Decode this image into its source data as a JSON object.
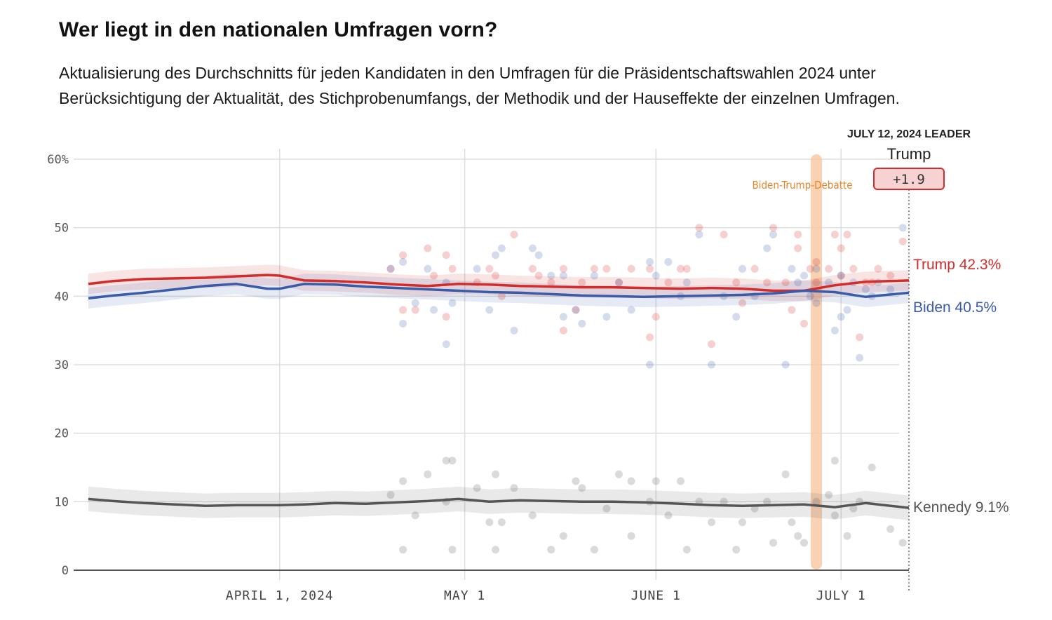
{
  "header": {
    "title": "Wer liegt in den nationalen Umfragen vorn?",
    "subtitle": "Aktualisierung des Durchschnitts für jeden Kandidaten in den Umfragen für die Präsidentschaftswahlen 2024 unter Berücksichtigung der Aktualität, des Stichprobenumfangs, der Methodik und der Hauseffekte der einzelnen Umfragen."
  },
  "colors": {
    "trump": "#d42b2b",
    "biden": "#3a5ba8",
    "kennedy": "#555555",
    "debate": "#f9c9a6",
    "grid": "#dddddd",
    "leader_box_fill": "#f6d2d2",
    "leader_box_stroke": "#d42b2b"
  },
  "leader": {
    "heading": "JULY 12, 2024 LEADER",
    "name": "Trump",
    "margin": "+1.9"
  },
  "chart_data": {
    "type": "line",
    "title": "",
    "xlabel": "",
    "ylabel": "",
    "x_range": [
      "2024-03-01",
      "2024-07-12"
    ],
    "ylim": [
      0,
      60
    ],
    "y_ticks": [
      {
        "value": 0,
        "label": "0"
      },
      {
        "value": 10,
        "label": "10"
      },
      {
        "value": 20,
        "label": "20"
      },
      {
        "value": 30,
        "label": "30"
      },
      {
        "value": 40,
        "label": "40"
      },
      {
        "value": 50,
        "label": "50"
      },
      {
        "value": 60,
        "label": "60%"
      }
    ],
    "x_ticks": [
      {
        "date": "2024-04-01",
        "label": "APRIL 1, 2024"
      },
      {
        "date": "2024-05-01",
        "label": "MAY 1"
      },
      {
        "date": "2024-06-01",
        "label": "JUNE 1"
      },
      {
        "date": "2024-07-01",
        "label": "JULY 1"
      }
    ],
    "grid": true,
    "annotations": [
      {
        "label": "Biden-Trump-Debatte",
        "date": "2024-06-27"
      }
    ],
    "series": [
      {
        "name": "Trump",
        "end_label": "Trump 42.3%",
        "color": "#d42b2b",
        "band": 1.5,
        "dates": [
          "2024-03-01",
          "2024-03-05",
          "2024-03-10",
          "2024-03-15",
          "2024-03-20",
          "2024-03-25",
          "2024-03-30",
          "2024-04-01",
          "2024-04-05",
          "2024-04-10",
          "2024-04-15",
          "2024-04-20",
          "2024-04-25",
          "2024-04-30",
          "2024-05-05",
          "2024-05-10",
          "2024-05-15",
          "2024-05-20",
          "2024-05-25",
          "2024-05-30",
          "2024-06-05",
          "2024-06-10",
          "2024-06-15",
          "2024-06-20",
          "2024-06-25",
          "2024-06-30",
          "2024-07-05",
          "2024-07-12"
        ],
        "values": [
          41.8,
          42.2,
          42.5,
          42.6,
          42.7,
          42.9,
          43.1,
          43.0,
          42.3,
          42.2,
          42.0,
          41.7,
          41.5,
          41.8,
          41.7,
          41.5,
          41.4,
          41.3,
          41.3,
          41.2,
          41.1,
          41.2,
          41.1,
          40.8,
          40.8,
          41.6,
          42.1,
          42.3
        ]
      },
      {
        "name": "Biden",
        "end_label": "Biden 40.5%",
        "color": "#3a5ba8",
        "band": 1.5,
        "dates": [
          "2024-03-01",
          "2024-03-05",
          "2024-03-10",
          "2024-03-15",
          "2024-03-20",
          "2024-03-25",
          "2024-03-30",
          "2024-04-01",
          "2024-04-05",
          "2024-04-10",
          "2024-04-15",
          "2024-04-20",
          "2024-04-25",
          "2024-04-30",
          "2024-05-05",
          "2024-05-10",
          "2024-05-15",
          "2024-05-20",
          "2024-05-25",
          "2024-05-30",
          "2024-06-05",
          "2024-06-10",
          "2024-06-15",
          "2024-06-20",
          "2024-06-25",
          "2024-06-30",
          "2024-07-05",
          "2024-07-12"
        ],
        "values": [
          39.7,
          40.1,
          40.5,
          41.0,
          41.5,
          41.8,
          41.1,
          41.1,
          41.8,
          41.7,
          41.4,
          41.2,
          41.0,
          40.8,
          40.6,
          40.5,
          40.3,
          40.1,
          40.0,
          39.9,
          40.0,
          40.1,
          40.2,
          40.4,
          40.8,
          40.6,
          39.9,
          40.5
        ]
      },
      {
        "name": "Kennedy",
        "end_label": "Kennedy 9.1%",
        "color": "#555555",
        "band": 1.8,
        "dates": [
          "2024-03-01",
          "2024-03-05",
          "2024-03-10",
          "2024-03-15",
          "2024-03-20",
          "2024-03-25",
          "2024-03-30",
          "2024-04-01",
          "2024-04-05",
          "2024-04-10",
          "2024-04-15",
          "2024-04-20",
          "2024-04-25",
          "2024-04-30",
          "2024-05-05",
          "2024-05-10",
          "2024-05-15",
          "2024-05-20",
          "2024-05-25",
          "2024-05-30",
          "2024-06-05",
          "2024-06-10",
          "2024-06-15",
          "2024-06-20",
          "2024-06-25",
          "2024-06-30",
          "2024-07-05",
          "2024-07-12"
        ],
        "values": [
          10.4,
          10.1,
          9.8,
          9.6,
          9.4,
          9.5,
          9.5,
          9.5,
          9.6,
          9.8,
          9.7,
          9.9,
          10.1,
          10.4,
          10.0,
          10.2,
          10.1,
          10.0,
          10.0,
          9.9,
          9.7,
          9.5,
          9.4,
          9.5,
          9.6,
          9.2,
          9.8,
          9.1
        ]
      }
    ],
    "polls": [
      {
        "name": "Trump",
        "color": "#d42b2b",
        "points": [
          [
            "2024-04-19",
            44
          ],
          [
            "2024-04-21",
            46
          ],
          [
            "2024-04-21",
            38
          ],
          [
            "2024-04-23",
            38
          ],
          [
            "2024-04-25",
            47
          ],
          [
            "2024-04-26",
            43
          ],
          [
            "2024-04-28",
            46
          ],
          [
            "2024-04-28",
            37
          ],
          [
            "2024-04-29",
            44
          ],
          [
            "2024-05-03",
            42
          ],
          [
            "2024-05-05",
            44
          ],
          [
            "2024-05-06",
            43
          ],
          [
            "2024-05-07",
            40
          ],
          [
            "2024-05-09",
            49
          ],
          [
            "2024-05-12",
            44
          ],
          [
            "2024-05-13",
            43
          ],
          [
            "2024-05-15",
            42
          ],
          [
            "2024-05-17",
            35
          ],
          [
            "2024-05-17",
            44
          ],
          [
            "2024-05-19",
            38
          ],
          [
            "2024-05-20",
            42
          ],
          [
            "2024-05-22",
            44
          ],
          [
            "2024-05-24",
            44
          ],
          [
            "2024-05-26",
            42
          ],
          [
            "2024-05-28",
            44
          ],
          [
            "2024-05-31",
            44
          ],
          [
            "2024-05-31",
            34
          ],
          [
            "2024-06-01",
            37
          ],
          [
            "2024-06-03",
            42
          ],
          [
            "2024-06-05",
            44
          ],
          [
            "2024-06-06",
            44
          ],
          [
            "2024-06-08",
            50
          ],
          [
            "2024-06-10",
            33
          ],
          [
            "2024-06-12",
            49
          ],
          [
            "2024-06-14",
            42
          ],
          [
            "2024-06-15",
            39
          ],
          [
            "2024-06-17",
            44
          ],
          [
            "2024-06-19",
            42
          ],
          [
            "2024-06-20",
            50
          ],
          [
            "2024-06-22",
            42
          ],
          [
            "2024-06-23",
            38
          ],
          [
            "2024-06-24",
            49
          ],
          [
            "2024-06-24",
            47
          ],
          [
            "2024-06-25",
            36
          ],
          [
            "2024-06-26",
            44
          ],
          [
            "2024-06-27",
            45
          ],
          [
            "2024-06-27",
            42
          ],
          [
            "2024-06-29",
            44
          ],
          [
            "2024-06-30",
            49
          ],
          [
            "2024-07-01",
            47
          ],
          [
            "2024-07-01",
            43
          ],
          [
            "2024-07-02",
            49
          ],
          [
            "2024-07-03",
            44
          ],
          [
            "2024-07-04",
            34
          ],
          [
            "2024-07-05",
            42
          ],
          [
            "2024-07-06",
            42
          ],
          [
            "2024-07-07",
            44
          ],
          [
            "2024-07-09",
            43
          ],
          [
            "2024-07-11",
            48
          ]
        ]
      },
      {
        "name": "Biden",
        "color": "#3a5ba8",
        "points": [
          [
            "2024-04-19",
            44
          ],
          [
            "2024-04-21",
            45
          ],
          [
            "2024-04-21",
            36
          ],
          [
            "2024-04-23",
            39
          ],
          [
            "2024-04-25",
            44
          ],
          [
            "2024-04-26",
            38
          ],
          [
            "2024-04-28",
            42
          ],
          [
            "2024-04-28",
            33
          ],
          [
            "2024-04-29",
            39
          ],
          [
            "2024-05-03",
            44
          ],
          [
            "2024-05-05",
            38
          ],
          [
            "2024-05-06",
            46
          ],
          [
            "2024-05-07",
            47
          ],
          [
            "2024-05-09",
            35
          ],
          [
            "2024-05-12",
            47
          ],
          [
            "2024-05-13",
            46
          ],
          [
            "2024-05-15",
            43
          ],
          [
            "2024-05-17",
            37
          ],
          [
            "2024-05-17",
            43
          ],
          [
            "2024-05-19",
            38
          ],
          [
            "2024-05-20",
            36
          ],
          [
            "2024-05-22",
            43
          ],
          [
            "2024-05-24",
            37
          ],
          [
            "2024-05-26",
            42
          ],
          [
            "2024-05-28",
            38
          ],
          [
            "2024-05-31",
            45
          ],
          [
            "2024-05-31",
            30
          ],
          [
            "2024-06-01",
            43
          ],
          [
            "2024-06-03",
            45
          ],
          [
            "2024-06-05",
            40
          ],
          [
            "2024-06-06",
            42
          ],
          [
            "2024-06-08",
            49
          ],
          [
            "2024-06-10",
            30
          ],
          [
            "2024-06-12",
            40
          ],
          [
            "2024-06-14",
            37
          ],
          [
            "2024-06-15",
            44
          ],
          [
            "2024-06-17",
            40
          ],
          [
            "2024-06-19",
            47
          ],
          [
            "2024-06-20",
            49
          ],
          [
            "2024-06-22",
            30
          ],
          [
            "2024-06-23",
            44
          ],
          [
            "2024-06-24",
            42
          ],
          [
            "2024-06-25",
            43
          ],
          [
            "2024-06-26",
            40
          ],
          [
            "2024-06-27",
            44
          ],
          [
            "2024-06-27",
            39
          ],
          [
            "2024-06-29",
            42
          ],
          [
            "2024-06-30",
            35
          ],
          [
            "2024-07-01",
            37
          ],
          [
            "2024-07-01",
            43
          ],
          [
            "2024-07-02",
            38
          ],
          [
            "2024-07-03",
            42
          ],
          [
            "2024-07-04",
            31
          ],
          [
            "2024-07-05",
            41
          ],
          [
            "2024-07-06",
            40
          ],
          [
            "2024-07-07",
            42
          ],
          [
            "2024-07-09",
            41
          ],
          [
            "2024-07-11",
            50
          ]
        ]
      },
      {
        "name": "Kennedy",
        "color": "#555555",
        "points": [
          [
            "2024-04-19",
            11
          ],
          [
            "2024-04-21",
            13
          ],
          [
            "2024-04-21",
            3
          ],
          [
            "2024-04-23",
            8
          ],
          [
            "2024-04-25",
            14
          ],
          [
            "2024-04-28",
            16
          ],
          [
            "2024-04-28",
            10
          ],
          [
            "2024-04-29",
            16
          ],
          [
            "2024-04-29",
            3
          ],
          [
            "2024-05-03",
            12
          ],
          [
            "2024-05-05",
            7
          ],
          [
            "2024-05-06",
            14
          ],
          [
            "2024-05-06",
            3
          ],
          [
            "2024-05-07",
            7
          ],
          [
            "2024-05-09",
            12
          ],
          [
            "2024-05-12",
            8
          ],
          [
            "2024-05-15",
            3
          ],
          [
            "2024-05-17",
            5
          ],
          [
            "2024-05-19",
            13
          ],
          [
            "2024-05-20",
            12
          ],
          [
            "2024-05-22",
            3
          ],
          [
            "2024-05-24",
            9
          ],
          [
            "2024-05-26",
            14
          ],
          [
            "2024-05-28",
            13
          ],
          [
            "2024-05-28",
            5
          ],
          [
            "2024-05-31",
            10
          ],
          [
            "2024-06-01",
            13
          ],
          [
            "2024-06-03",
            8
          ],
          [
            "2024-06-05",
            13
          ],
          [
            "2024-06-06",
            3
          ],
          [
            "2024-06-08",
            10
          ],
          [
            "2024-06-10",
            7
          ],
          [
            "2024-06-12",
            10
          ],
          [
            "2024-06-14",
            3
          ],
          [
            "2024-06-15",
            7
          ],
          [
            "2024-06-17",
            9
          ],
          [
            "2024-06-19",
            10
          ],
          [
            "2024-06-20",
            4
          ],
          [
            "2024-06-22",
            14
          ],
          [
            "2024-06-23",
            7
          ],
          [
            "2024-06-24",
            5
          ],
          [
            "2024-06-25",
            4
          ],
          [
            "2024-06-27",
            10
          ],
          [
            "2024-06-29",
            11
          ],
          [
            "2024-06-30",
            16
          ],
          [
            "2024-06-30",
            8
          ],
          [
            "2024-07-02",
            5
          ],
          [
            "2024-07-03",
            9
          ],
          [
            "2024-07-04",
            10
          ],
          [
            "2024-07-06",
            15
          ],
          [
            "2024-07-09",
            6
          ],
          [
            "2024-07-11",
            4
          ]
        ]
      }
    ]
  }
}
